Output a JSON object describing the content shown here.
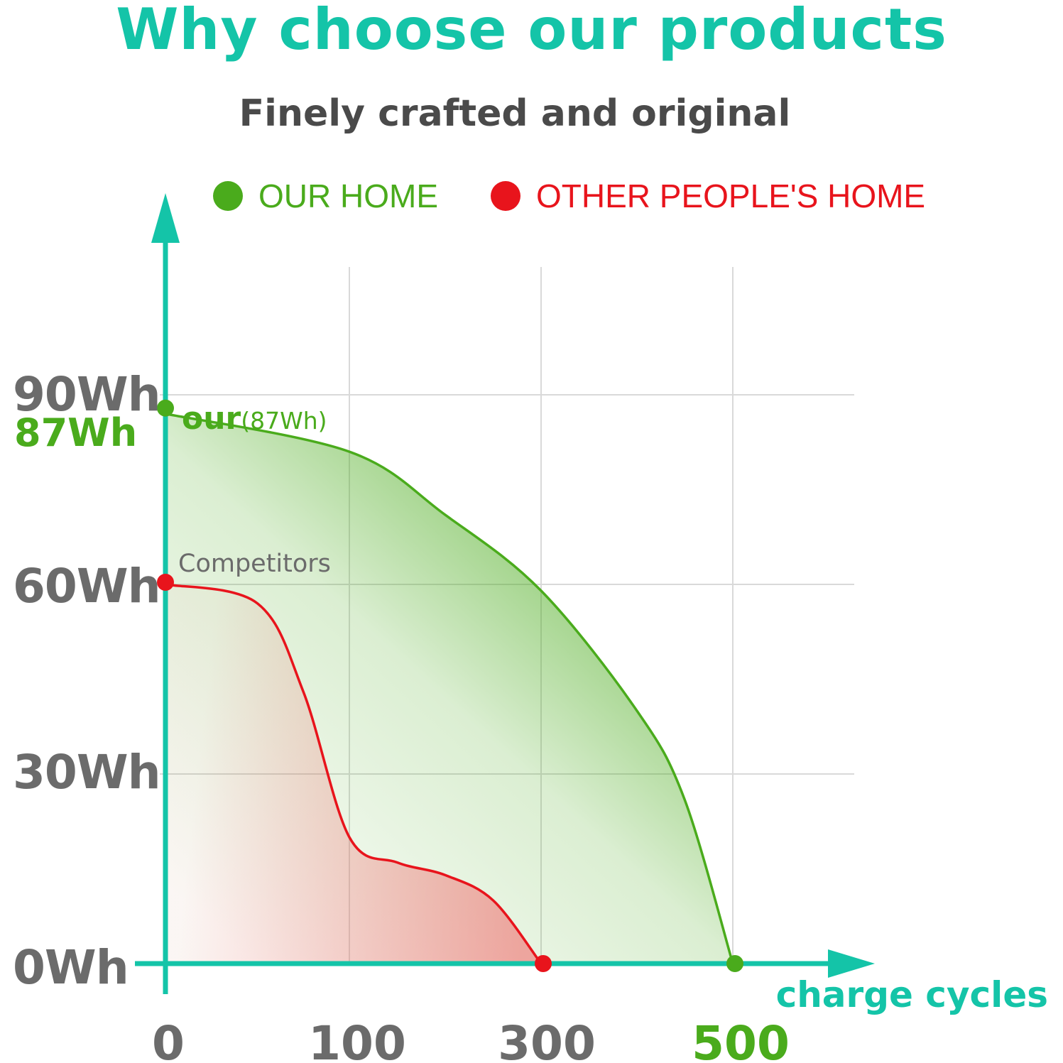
{
  "header": {
    "title": "Why choose our products",
    "subtitle": "Finely crafted and original"
  },
  "legend": {
    "items": [
      {
        "label": "OUR HOME",
        "color": "#4aab1c"
      },
      {
        "label": "OTHER PEOPLE'S HOME",
        "color": "#e8141c"
      }
    ]
  },
  "colors": {
    "axis": "#14c4a8",
    "grid": "#d9d9d9",
    "our": "#4aab1c",
    "competitor": "#e8141c",
    "tick": "#6b6b6b"
  },
  "chart_data": {
    "type": "area",
    "title": "",
    "xlabel": "charge cycles",
    "ylabel": "",
    "x_ticks": [
      "0",
      "100",
      "300",
      "500"
    ],
    "x_tick_values": [
      0,
      100,
      300,
      500
    ],
    "highlighted_x_tick": "500",
    "y_ticks": [
      "0Wh",
      "30Wh",
      "60Wh",
      "90Wh"
    ],
    "y_tick_values": [
      0,
      30,
      60,
      90
    ],
    "highlighted_y_tick": {
      "label": "87Wh",
      "value": 87
    },
    "grid": true,
    "legend_position": "top",
    "series": [
      {
        "name": "OUR HOME",
        "annotation": {
          "main": "our",
          "suffix": "(87Wh)"
        },
        "points": [
          [
            0,
            87
          ],
          [
            100,
            81
          ],
          [
            200,
            71
          ],
          [
            300,
            59
          ],
          [
            400,
            40
          ],
          [
            450,
            26
          ],
          [
            500,
            0
          ]
        ]
      },
      {
        "name": "OTHER PEOPLE'S HOME",
        "annotation": {
          "main": "Competitors"
        },
        "points": [
          [
            0,
            60
          ],
          [
            50,
            57
          ],
          [
            75,
            43
          ],
          [
            100,
            20
          ],
          [
            150,
            16
          ],
          [
            200,
            14
          ],
          [
            250,
            10
          ],
          [
            300,
            0
          ]
        ]
      }
    ]
  }
}
